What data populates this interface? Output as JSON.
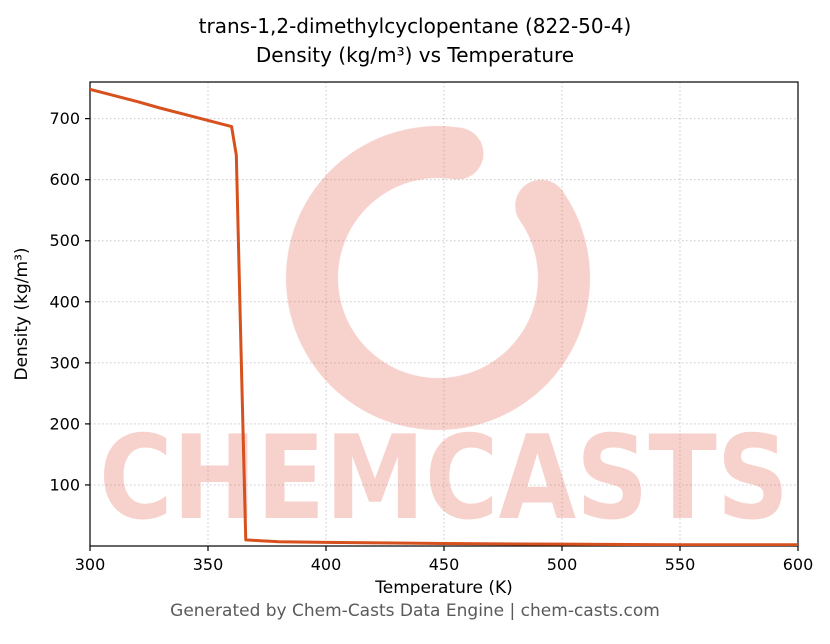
{
  "header": {
    "title_line1": "trans-1,2-dimethylcyclopentane (822-50-4)",
    "title_line2": "Density (kg/m³) vs Temperature"
  },
  "footer": {
    "text": "Generated by Chem-Casts Data Engine | chem-casts.com"
  },
  "watermark": {
    "text": "CHEMCASTS",
    "icon": "brush-c-logo-icon",
    "color": "#e25842",
    "opacity": 0.27
  },
  "chart_data": {
    "type": "line",
    "title": "trans-1,2-dimethylcyclopentane (822-50-4) Density (kg/m³) vs Temperature",
    "xlabel": "Temperature (K)",
    "ylabel": "Density (kg/m³)",
    "xlim": [
      300,
      600
    ],
    "ylim": [
      0,
      760
    ],
    "xticks": [
      300,
      350,
      400,
      450,
      500,
      550,
      600
    ],
    "yticks": [
      100,
      200,
      300,
      400,
      500,
      600,
      700
    ],
    "grid": true,
    "legend_position": "none",
    "series": [
      {
        "name": "Density (kg/m³)",
        "color": "#d6511d",
        "line_width": 3,
        "points": [
          [
            300,
            748
          ],
          [
            310,
            738
          ],
          [
            320,
            728
          ],
          [
            330,
            717
          ],
          [
            340,
            707
          ],
          [
            350,
            697
          ],
          [
            360,
            687
          ],
          [
            362,
            640
          ],
          [
            364,
            320
          ],
          [
            366,
            10
          ],
          [
            380,
            7
          ],
          [
            400,
            6
          ],
          [
            450,
            4
          ],
          [
            500,
            3
          ],
          [
            550,
            2
          ],
          [
            600,
            2
          ]
        ]
      }
    ]
  }
}
